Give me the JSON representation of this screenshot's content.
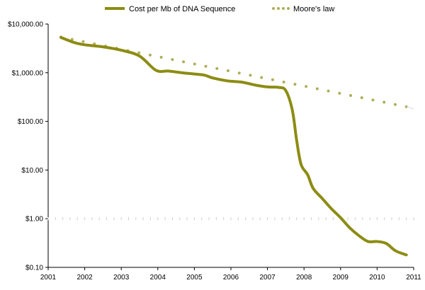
{
  "chart_data": {
    "type": "line",
    "title": "",
    "xlabel": "",
    "ylabel": "",
    "scale": {
      "y": "log"
    },
    "ylim": [
      0.1,
      10000
    ],
    "xlim": [
      2001,
      2011
    ],
    "grid": false,
    "legend_position": "top-center",
    "y_ticks": [
      {
        "value": 10000,
        "label": "$10,000.00"
      },
      {
        "value": 1000,
        "label": "$1,000.00"
      },
      {
        "value": 100,
        "label": "$100.00"
      },
      {
        "value": 10,
        "label": "$10.00"
      },
      {
        "value": 1,
        "label": "$1.00"
      },
      {
        "value": 0.1,
        "label": "$0.10"
      }
    ],
    "x_ticks": [
      {
        "value": 2001,
        "label": "2001"
      },
      {
        "value": 2002,
        "label": "2002"
      },
      {
        "value": 2003,
        "label": "2003"
      },
      {
        "value": 2004,
        "label": "2004"
      },
      {
        "value": 2005,
        "label": "2005"
      },
      {
        "value": 2006,
        "label": "2006"
      },
      {
        "value": 2007,
        "label": "2007"
      },
      {
        "value": 2008,
        "label": "2008"
      },
      {
        "value": 2009,
        "label": "2009"
      },
      {
        "value": 2010,
        "label": "2010"
      },
      {
        "value": 2011,
        "label": "2011"
      }
    ],
    "series": [
      {
        "name": "Cost per Mb of DNA Sequence",
        "style": "solid",
        "color": "#8c8c13",
        "points": [
          [
            2001.35,
            5300
          ],
          [
            2001.7,
            4200
          ],
          [
            2002.0,
            3750
          ],
          [
            2002.5,
            3400
          ],
          [
            2003.0,
            2900
          ],
          [
            2003.5,
            2200
          ],
          [
            2003.95,
            1120
          ],
          [
            2004.3,
            1080
          ],
          [
            2004.75,
            980
          ],
          [
            2005.25,
            900
          ],
          [
            2005.5,
            780
          ],
          [
            2005.9,
            680
          ],
          [
            2006.3,
            640
          ],
          [
            2006.65,
            560
          ],
          [
            2007.0,
            510
          ],
          [
            2007.3,
            500
          ],
          [
            2007.5,
            430
          ],
          [
            2007.68,
            170
          ],
          [
            2007.8,
            40
          ],
          [
            2007.92,
            13
          ],
          [
            2008.1,
            8
          ],
          [
            2008.25,
            4.2
          ],
          [
            2008.5,
            2.6
          ],
          [
            2008.75,
            1.6
          ],
          [
            2009.0,
            1.05
          ],
          [
            2009.25,
            0.65
          ],
          [
            2009.5,
            0.45
          ],
          [
            2009.75,
            0.34
          ],
          [
            2010.0,
            0.34
          ],
          [
            2010.25,
            0.31
          ],
          [
            2010.5,
            0.22
          ],
          [
            2010.8,
            0.18
          ]
        ]
      },
      {
        "name": "Moore's law",
        "style": "dotted",
        "color": "#8c8c13",
        "points": [
          [
            2001.35,
            5400
          ],
          [
            2010.8,
            200
          ]
        ]
      }
    ]
  }
}
